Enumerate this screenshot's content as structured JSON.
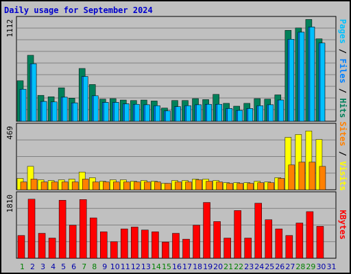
{
  "title": "Daily usage for September 2024",
  "legend_top": {
    "pages": "Pages",
    "files": "Files",
    "hits": "Hits",
    "sep": " / "
  },
  "legend_mid": {
    "sites": "Sites",
    "visits": "Visits",
    "sep": " / "
  },
  "legend_bot": {
    "kbytes": "KBytes"
  },
  "colors": {
    "hits": "#00805a",
    "files": "#0080ff",
    "pages": "#00c0ff",
    "visits": "#ffff00",
    "sites": "#ff8000",
    "kbytes": "#ff0000",
    "weekend": "#008000",
    "weekday": "#0000aa"
  },
  "chart_data": [
    {
      "type": "bar",
      "title": "Daily usage for September 2024",
      "ymax_label": "1112",
      "ylim": [
        0,
        1112
      ],
      "categories": [
        "1",
        "2",
        "3",
        "4",
        "5",
        "6",
        "7",
        "8",
        "9",
        "10",
        "11",
        "12",
        "13",
        "14",
        "15",
        "16",
        "17",
        "18",
        "19",
        "20",
        "21",
        "22",
        "23",
        "24",
        "25",
        "26",
        "27",
        "28",
        "29",
        "30",
        "31"
      ],
      "weekend_days": [
        "1",
        "7",
        "8",
        "14",
        "15",
        "21",
        "22",
        "28",
        "29"
      ],
      "series": [
        {
          "name": "Hits",
          "values": [
            430,
            700,
            275,
            260,
            355,
            245,
            560,
            390,
            235,
            240,
            225,
            220,
            225,
            215,
            140,
            220,
            220,
            240,
            230,
            285,
            190,
            160,
            190,
            240,
            235,
            280,
            965,
            990,
            1080,
            875,
            0
          ]
        },
        {
          "name": "Files",
          "values": [
            340,
            610,
            210,
            205,
            255,
            195,
            475,
            270,
            200,
            200,
            185,
            180,
            175,
            165,
            110,
            155,
            165,
            175,
            180,
            180,
            135,
            115,
            135,
            165,
            175,
            225,
            870,
            945,
            1000,
            830,
            0
          ]
        },
        {
          "name": "Pages",
          "values": [
            340,
            610,
            210,
            205,
            255,
            195,
            475,
            270,
            200,
            200,
            185,
            180,
            175,
            165,
            110,
            155,
            165,
            175,
            180,
            180,
            135,
            115,
            135,
            165,
            175,
            225,
            870,
            945,
            1000,
            830,
            0
          ]
        }
      ]
    },
    {
      "type": "bar",
      "ymax_label": "469",
      "ylim": [
        0,
        469
      ],
      "series": [
        {
          "name": "Visits",
          "values": [
            80,
            165,
            70,
            65,
            70,
            75,
            125,
            85,
            60,
            70,
            70,
            60,
            65,
            60,
            45,
            65,
            65,
            75,
            75,
            65,
            50,
            50,
            50,
            60,
            55,
            85,
            370,
            390,
            415,
            355,
            0
          ]
        },
        {
          "name": "Sites",
          "values": [
            55,
            75,
            55,
            55,
            55,
            55,
            75,
            55,
            55,
            55,
            55,
            55,
            55,
            55,
            45,
            55,
            55,
            70,
            60,
            55,
            45,
            45,
            45,
            50,
            50,
            80,
            175,
            195,
            195,
            165,
            0
          ]
        }
      ]
    },
    {
      "type": "bar",
      "ymax_label": "1810",
      "ylim": [
        0,
        1810
      ],
      "series": [
        {
          "name": "KBytes",
          "values": [
            620,
            1610,
            680,
            550,
            1580,
            900,
            1600,
            1100,
            720,
            450,
            800,
            850,
            770,
            720,
            440,
            680,
            520,
            900,
            1520,
            1000,
            550,
            1300,
            550,
            1500,
            1050,
            800,
            620,
            960,
            1270,
            870,
            0
          ]
        }
      ]
    }
  ]
}
